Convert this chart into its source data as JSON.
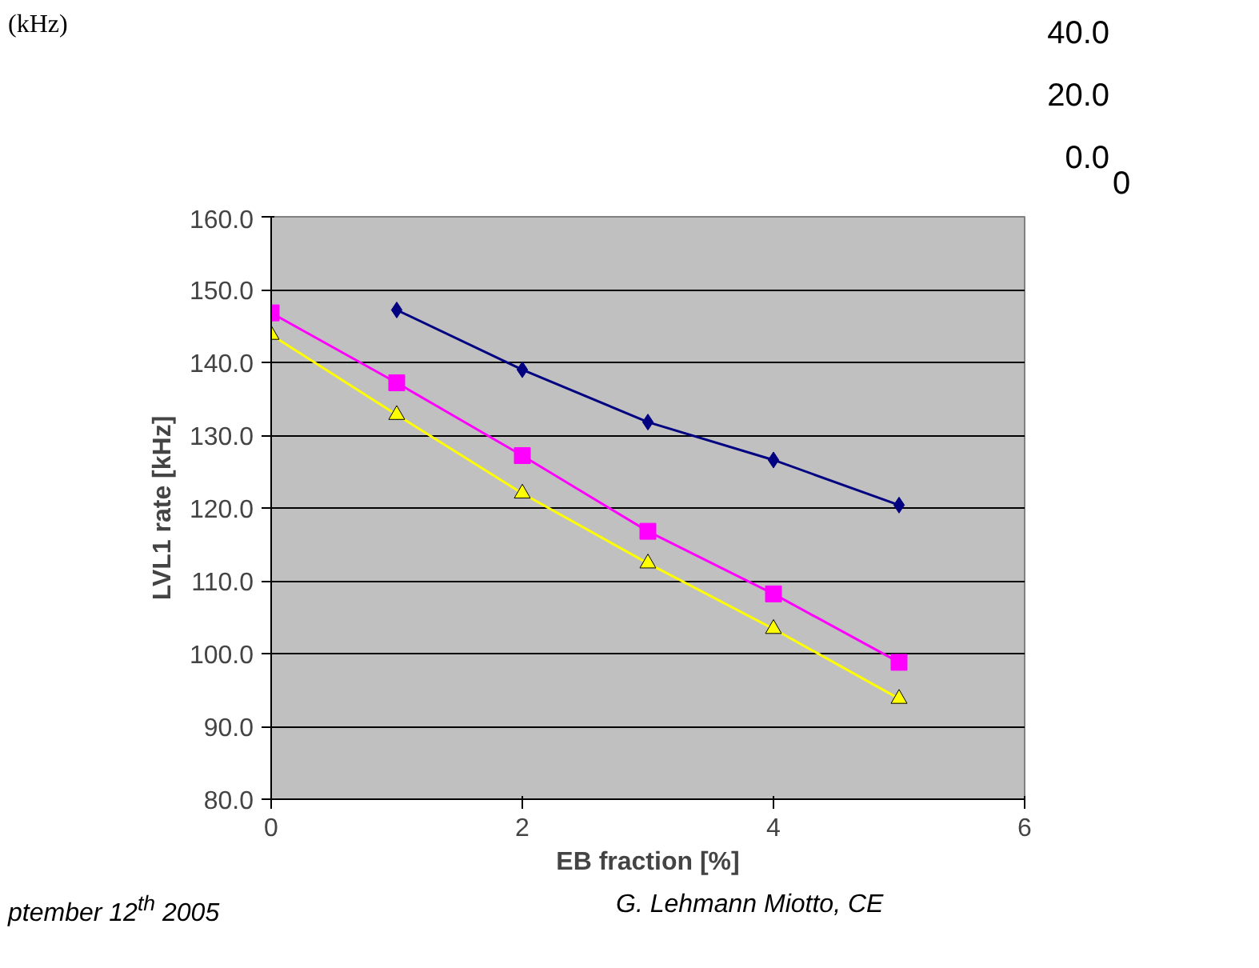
{
  "chart_data": [
    {
      "type": "line",
      "xlabel": "EB fraction [%]",
      "ylabel": "LVL1 rate [kHz]",
      "xlim": [
        0,
        6
      ],
      "xticks": [
        0,
        2,
        4,
        6
      ],
      "ylim": [
        80,
        160
      ],
      "yticks": [
        {
          "value": 80,
          "label": "80.0"
        },
        {
          "value": 90,
          "label": "90.0"
        },
        {
          "value": 100,
          "label": "100.0"
        },
        {
          "value": 110,
          "label": "110.0"
        },
        {
          "value": 120,
          "label": "120.0"
        },
        {
          "value": 130,
          "label": "130.0"
        },
        {
          "value": 140,
          "label": "140.0"
        },
        {
          "value": 150,
          "label": "150.0"
        },
        {
          "value": 160,
          "label": "160.0"
        }
      ],
      "grid": "y",
      "series": [
        {
          "color": "#000080",
          "marker": "diamond",
          "x": [
            1,
            2,
            3,
            4,
            5
          ],
          "values": [
            147.2,
            139.0,
            131.8,
            126.6,
            120.4
          ]
        },
        {
          "color": "#ff00ff",
          "marker": "square",
          "x": [
            0,
            1,
            2,
            3,
            4,
            5
          ],
          "values": [
            146.8,
            137.2,
            127.2,
            116.8,
            108.2,
            98.8
          ]
        },
        {
          "color": "#ffff00",
          "marker": "triangle",
          "x": [
            0,
            1,
            2,
            3,
            4,
            5
          ],
          "values": [
            143.8,
            132.8,
            122.0,
            112.4,
            103.4,
            93.8
          ]
        }
      ],
      "annotations": [
        "(kHz)",
        "ptember 12$^{th}$ 2005",
        "G. Lehmann Miotto, CE"
      ]
    },
    {
      "type": "other",
      "annotations": [
        "40.0",
        "20.0",
        "0.0",
        "0"
      ]
    }
  ]
}
